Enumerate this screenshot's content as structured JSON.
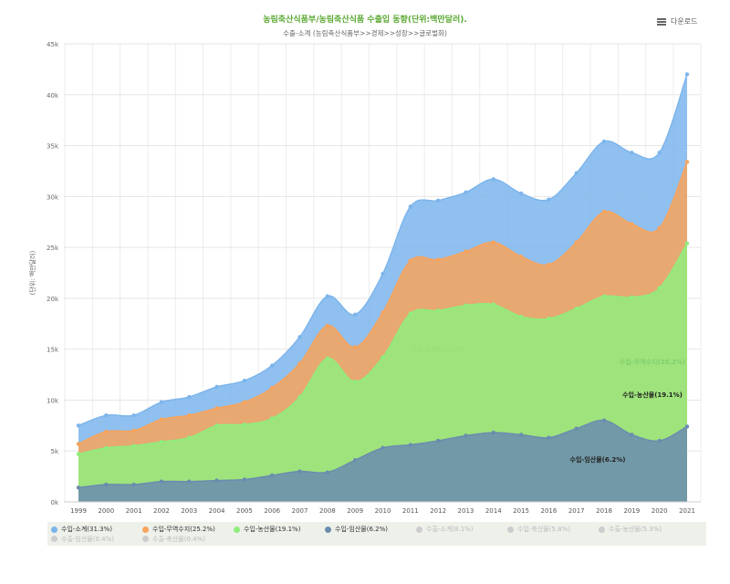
{
  "header": {
    "title": "농림축산식품부/농림축산식품 수출입 동향(단위:백만달러).",
    "subtitle": "수출-소계 (농림축산식품부>>경제>>성장>>글로벌화)",
    "download": "다운로드",
    "download_icon": "menu-icon"
  },
  "chart_data": {
    "type": "area",
    "title": "농림축산식품부/농림축산식품 수출입 동향(단위:백만달러).",
    "ylabel": "(단위: 백만달러)",
    "xlabel": "",
    "ylim": [
      0,
      45000
    ],
    "yticks": [
      "0k",
      "5k",
      "10k",
      "15k",
      "20k",
      "25k",
      "30k",
      "35k",
      "40k",
      "45k"
    ],
    "x": [
      "1999",
      "2000",
      "2001",
      "2002",
      "2003",
      "2004",
      "2005",
      "2006",
      "2007",
      "2008",
      "2009",
      "2010",
      "2011",
      "2012",
      "2013",
      "2014",
      "2015",
      "2016",
      "2017",
      "2018",
      "2019",
      "2020",
      "2021"
    ],
    "grid": true,
    "legend_position": "bottom",
    "series": [
      {
        "name": "수입-소계(31.3%)",
        "color": "#7cb5ec",
        "visible": true,
        "annotation": "수입-소계(31.3%)",
        "values": [
          7500,
          8500,
          8500,
          9800,
          10300,
          11300,
          11900,
          13400,
          16200,
          20200,
          18400,
          22400,
          29000,
          29600,
          30400,
          31700,
          30300,
          29700,
          32300,
          35400,
          34300,
          34300,
          42000
        ]
      },
      {
        "name": "수입-무역수지(25.2%)",
        "color": "#f7a35c",
        "visible": true,
        "annotation": "수입-무역수지(25.2%)",
        "values": [
          5700,
          6900,
          7000,
          8100,
          8500,
          9200,
          9800,
          11200,
          13600,
          17300,
          15200,
          18600,
          23700,
          23800,
          24600,
          25500,
          24100,
          23300,
          25500,
          28500,
          27300,
          26900,
          33400
        ]
      },
      {
        "name": "수입-농산물(19.1%)",
        "color": "#90ed7d",
        "visible": true,
        "annotation": "수입-농산물(19.1%)",
        "values": [
          4700,
          5300,
          5500,
          5900,
          6300,
          7500,
          7600,
          8200,
          10300,
          14100,
          11800,
          14200,
          18500,
          18800,
          19300,
          19400,
          18200,
          18000,
          19000,
          20200,
          20100,
          21000,
          25400
        ]
      },
      {
        "name": "수입-임산물(6.2%)",
        "color": "#6a8caf",
        "visible": true,
        "annotation": "수입-임산물(6.2%)",
        "values": [
          1400,
          1700,
          1700,
          2000,
          2000,
          2100,
          2200,
          2600,
          3000,
          2900,
          4100,
          5300,
          5600,
          6000,
          6500,
          6800,
          6600,
          6300,
          7200,
          8000,
          6600,
          6000,
          7400
        ]
      },
      {
        "name": "수출-소계(8.1%)",
        "color": "#cccccc",
        "visible": false
      },
      {
        "name": "수입-축산물(5.8%)",
        "color": "#cccccc",
        "visible": false
      },
      {
        "name": "수출-농산물(5.3%)",
        "color": "#cccccc",
        "visible": false
      },
      {
        "name": "수출-임산물(0.4%)",
        "color": "#cccccc",
        "visible": false
      },
      {
        "name": "수출-축산물(0.4%)",
        "color": "#cccccc",
        "visible": false
      }
    ]
  }
}
